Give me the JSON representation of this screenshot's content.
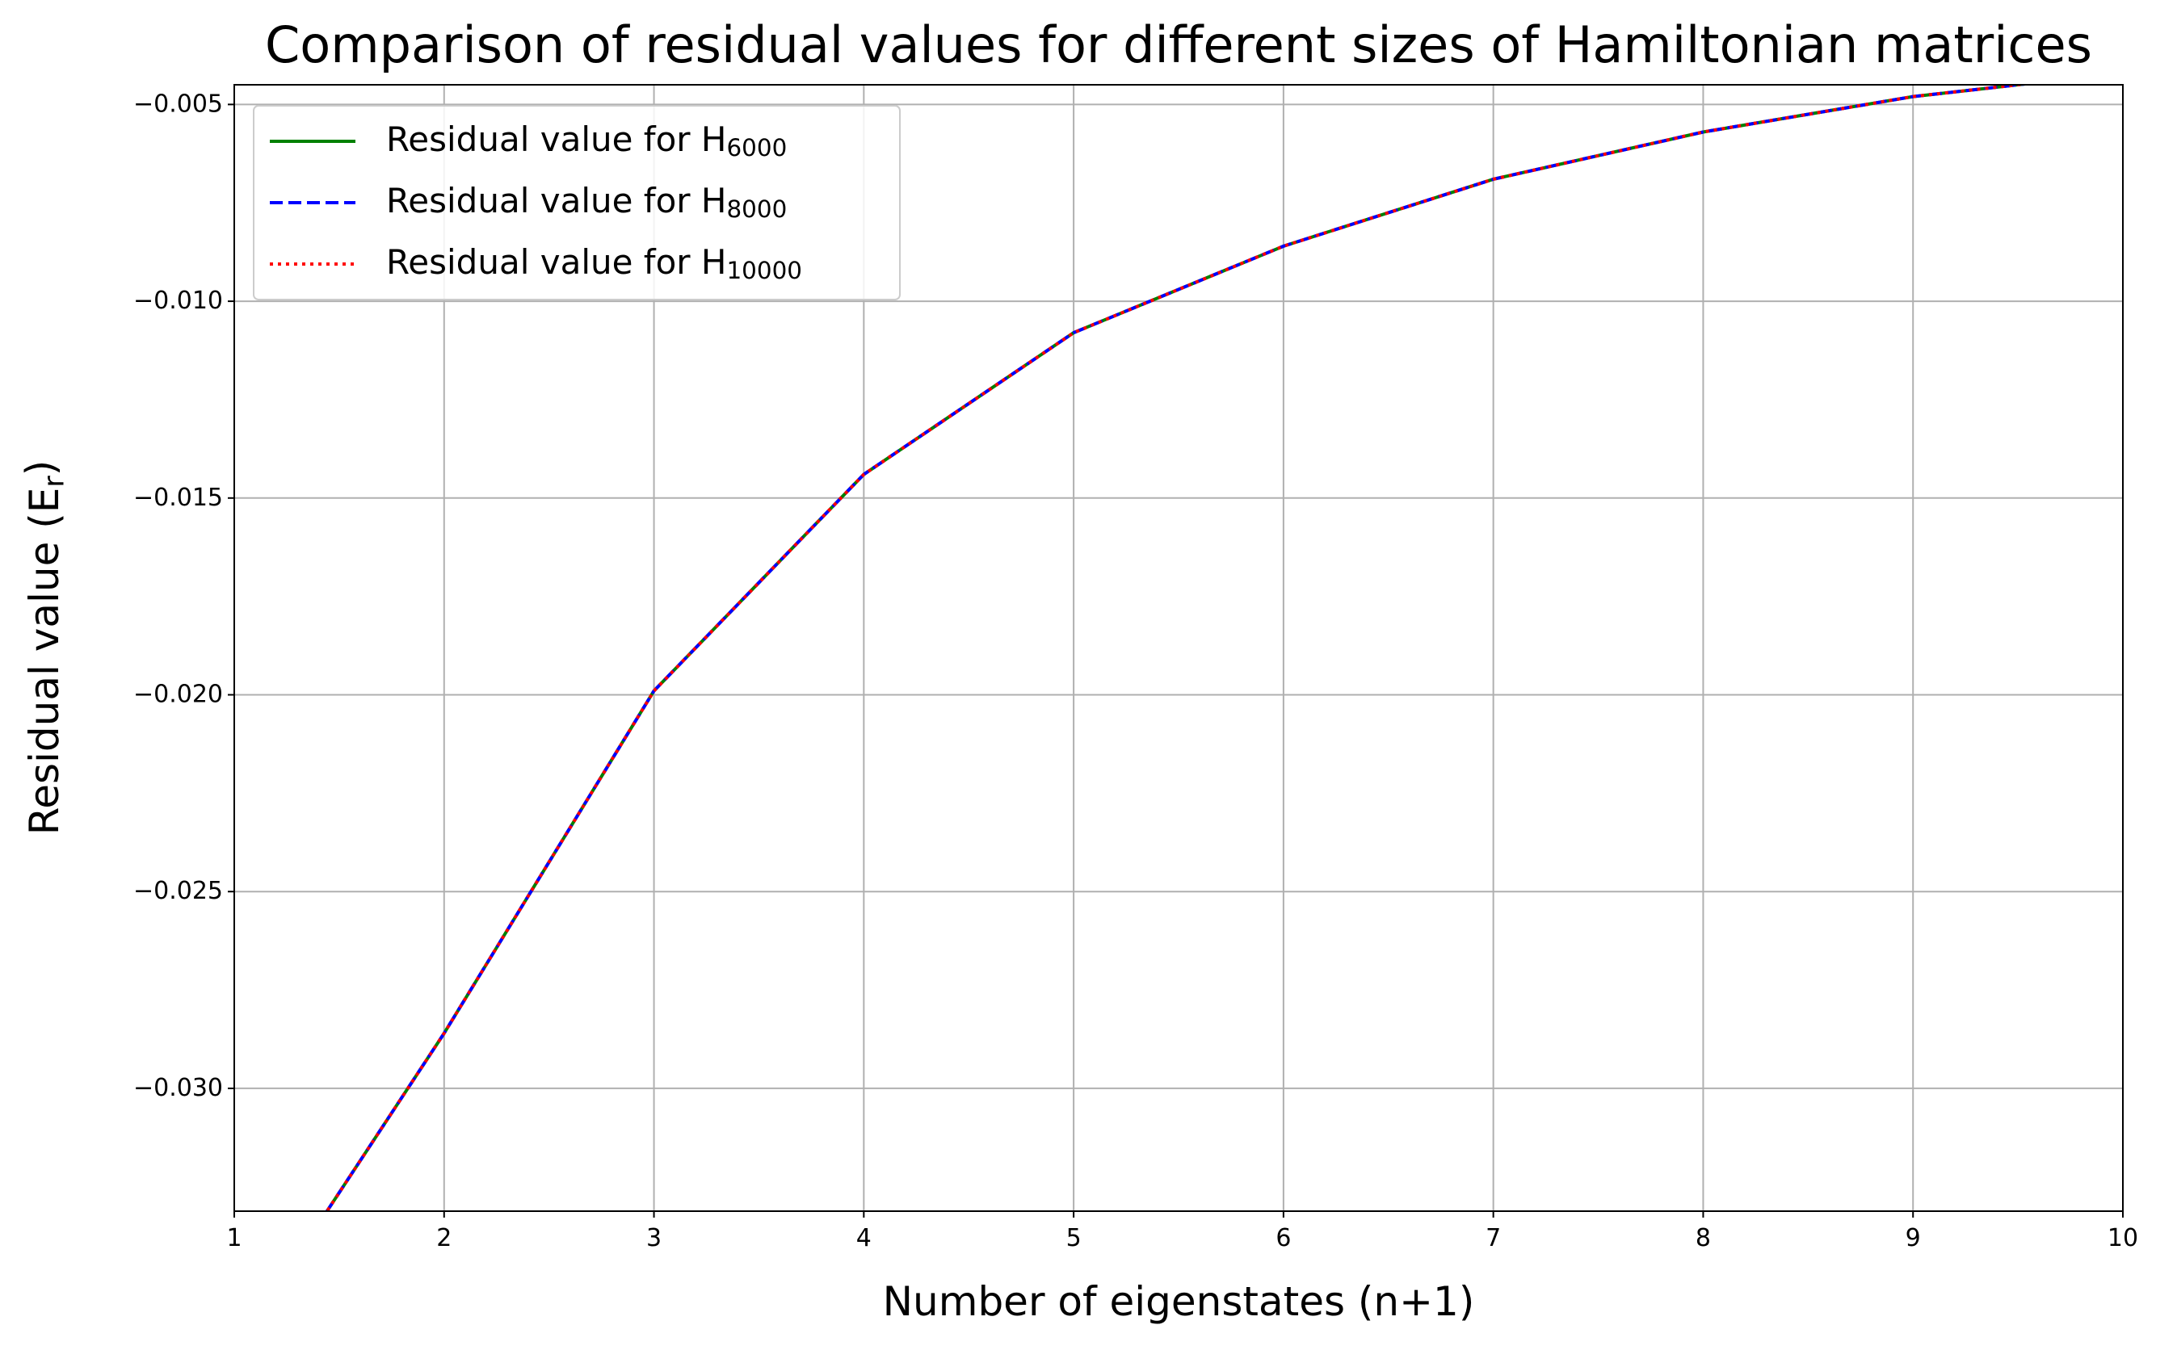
{
  "chart_data": {
    "type": "line",
    "title": "Comparison of residual values for different sizes of Hamiltonian matrices",
    "xlabel": "Number of eigenstates (n+1)",
    "ylabel": "Residual value (E_{r})",
    "x": [
      1,
      2,
      3,
      4,
      5,
      6,
      7,
      8,
      9,
      10
    ],
    "series": [
      {
        "name": "Residual value for H_{6000}",
        "color": "#008000",
        "dash": "solid",
        "values": [
          -0.0367,
          -0.0286,
          -0.0199,
          -0.0144,
          -0.0108,
          -0.0086,
          -0.0069,
          -0.0057,
          -0.0048,
          -0.0042
        ]
      },
      {
        "name": "Residual value for H_{8000}",
        "color": "#0000ff",
        "dash": "dashed",
        "values": [
          -0.0367,
          -0.0286,
          -0.0199,
          -0.0144,
          -0.0108,
          -0.0086,
          -0.0069,
          -0.0057,
          -0.0048,
          -0.0042
        ]
      },
      {
        "name": "Residual value for H_{10000}",
        "color": "#ff0000",
        "dash": "dotted",
        "values": [
          -0.0367,
          -0.0286,
          -0.0199,
          -0.0144,
          -0.0108,
          -0.0086,
          -0.0069,
          -0.0057,
          -0.0048,
          -0.0042
        ]
      }
    ],
    "xlim": [
      1,
      10
    ],
    "xticks": [
      1,
      2,
      3,
      4,
      5,
      6,
      7,
      8,
      9,
      10
    ],
    "ylim": [
      -0.03312,
      -0.0045
    ],
    "yticks": [
      {
        "value": -0.03,
        "label": "−0.030"
      },
      {
        "value": -0.025,
        "label": "−0.025"
      },
      {
        "value": -0.02,
        "label": "−0.020"
      },
      {
        "value": -0.015,
        "label": "−0.015"
      },
      {
        "value": -0.01,
        "label": "−0.010"
      },
      {
        "value": -0.005,
        "label": "−0.005"
      }
    ],
    "grid": true,
    "legend": "upper left"
  }
}
